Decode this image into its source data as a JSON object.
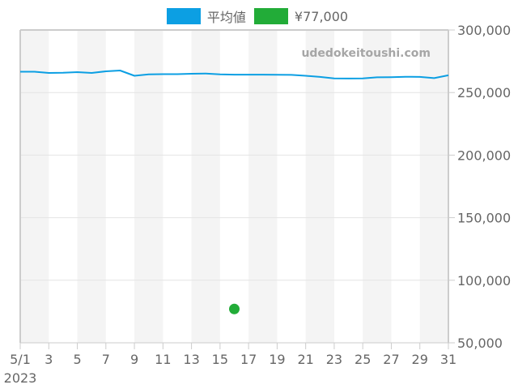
{
  "legend": {
    "items": [
      {
        "label": "平均値",
        "color": "#0c9fe3"
      },
      {
        "label": "¥77,000",
        "color": "#22ac38"
      }
    ]
  },
  "watermark": "udedokeitoushi.com",
  "colors": {
    "line": "#0c9fe3",
    "point": "#22ac38",
    "band": "#f4f4f4",
    "grid": "#e4e4e4",
    "axis": "#cccccc",
    "tick_text": "#666666",
    "watermark": "#a6a6a6"
  },
  "chart_data": {
    "type": "line",
    "title": "",
    "xlabel": "",
    "ylabel": "",
    "x_tick_labels": [
      "5/1",
      "3",
      "5",
      "7",
      "9",
      "11",
      "13",
      "15",
      "17",
      "19",
      "21",
      "23",
      "25",
      "27",
      "29",
      "31"
    ],
    "x_tick_sublabel": "2023",
    "y_tick_labels": [
      "300,000",
      "250,000",
      "200,000",
      "150,000",
      "100,000",
      "50,000"
    ],
    "ylim": [
      50000,
      300000
    ],
    "xlim": [
      1,
      31
    ],
    "grid": true,
    "legend_position": "top",
    "x": [
      1,
      2,
      3,
      4,
      5,
      6,
      7,
      8,
      9,
      10,
      11,
      12,
      13,
      14,
      15,
      16,
      17,
      18,
      19,
      20,
      21,
      22,
      23,
      24,
      25,
      26,
      27,
      28,
      29,
      30,
      31
    ],
    "series": [
      {
        "name": "平均値",
        "type": "line",
        "values": [
          266650,
          266650,
          265700,
          265800,
          266300,
          265700,
          267000,
          267600,
          263400,
          264600,
          264700,
          264700,
          265000,
          265200,
          264600,
          264300,
          264300,
          264300,
          264200,
          264100,
          263400,
          262500,
          261300,
          261200,
          261300,
          262200,
          262300,
          262600,
          262500,
          261500,
          263800
        ]
      },
      {
        "name": "¥77,000",
        "type": "scatter",
        "points": [
          {
            "x": 16,
            "y": 77000
          }
        ]
      }
    ]
  }
}
